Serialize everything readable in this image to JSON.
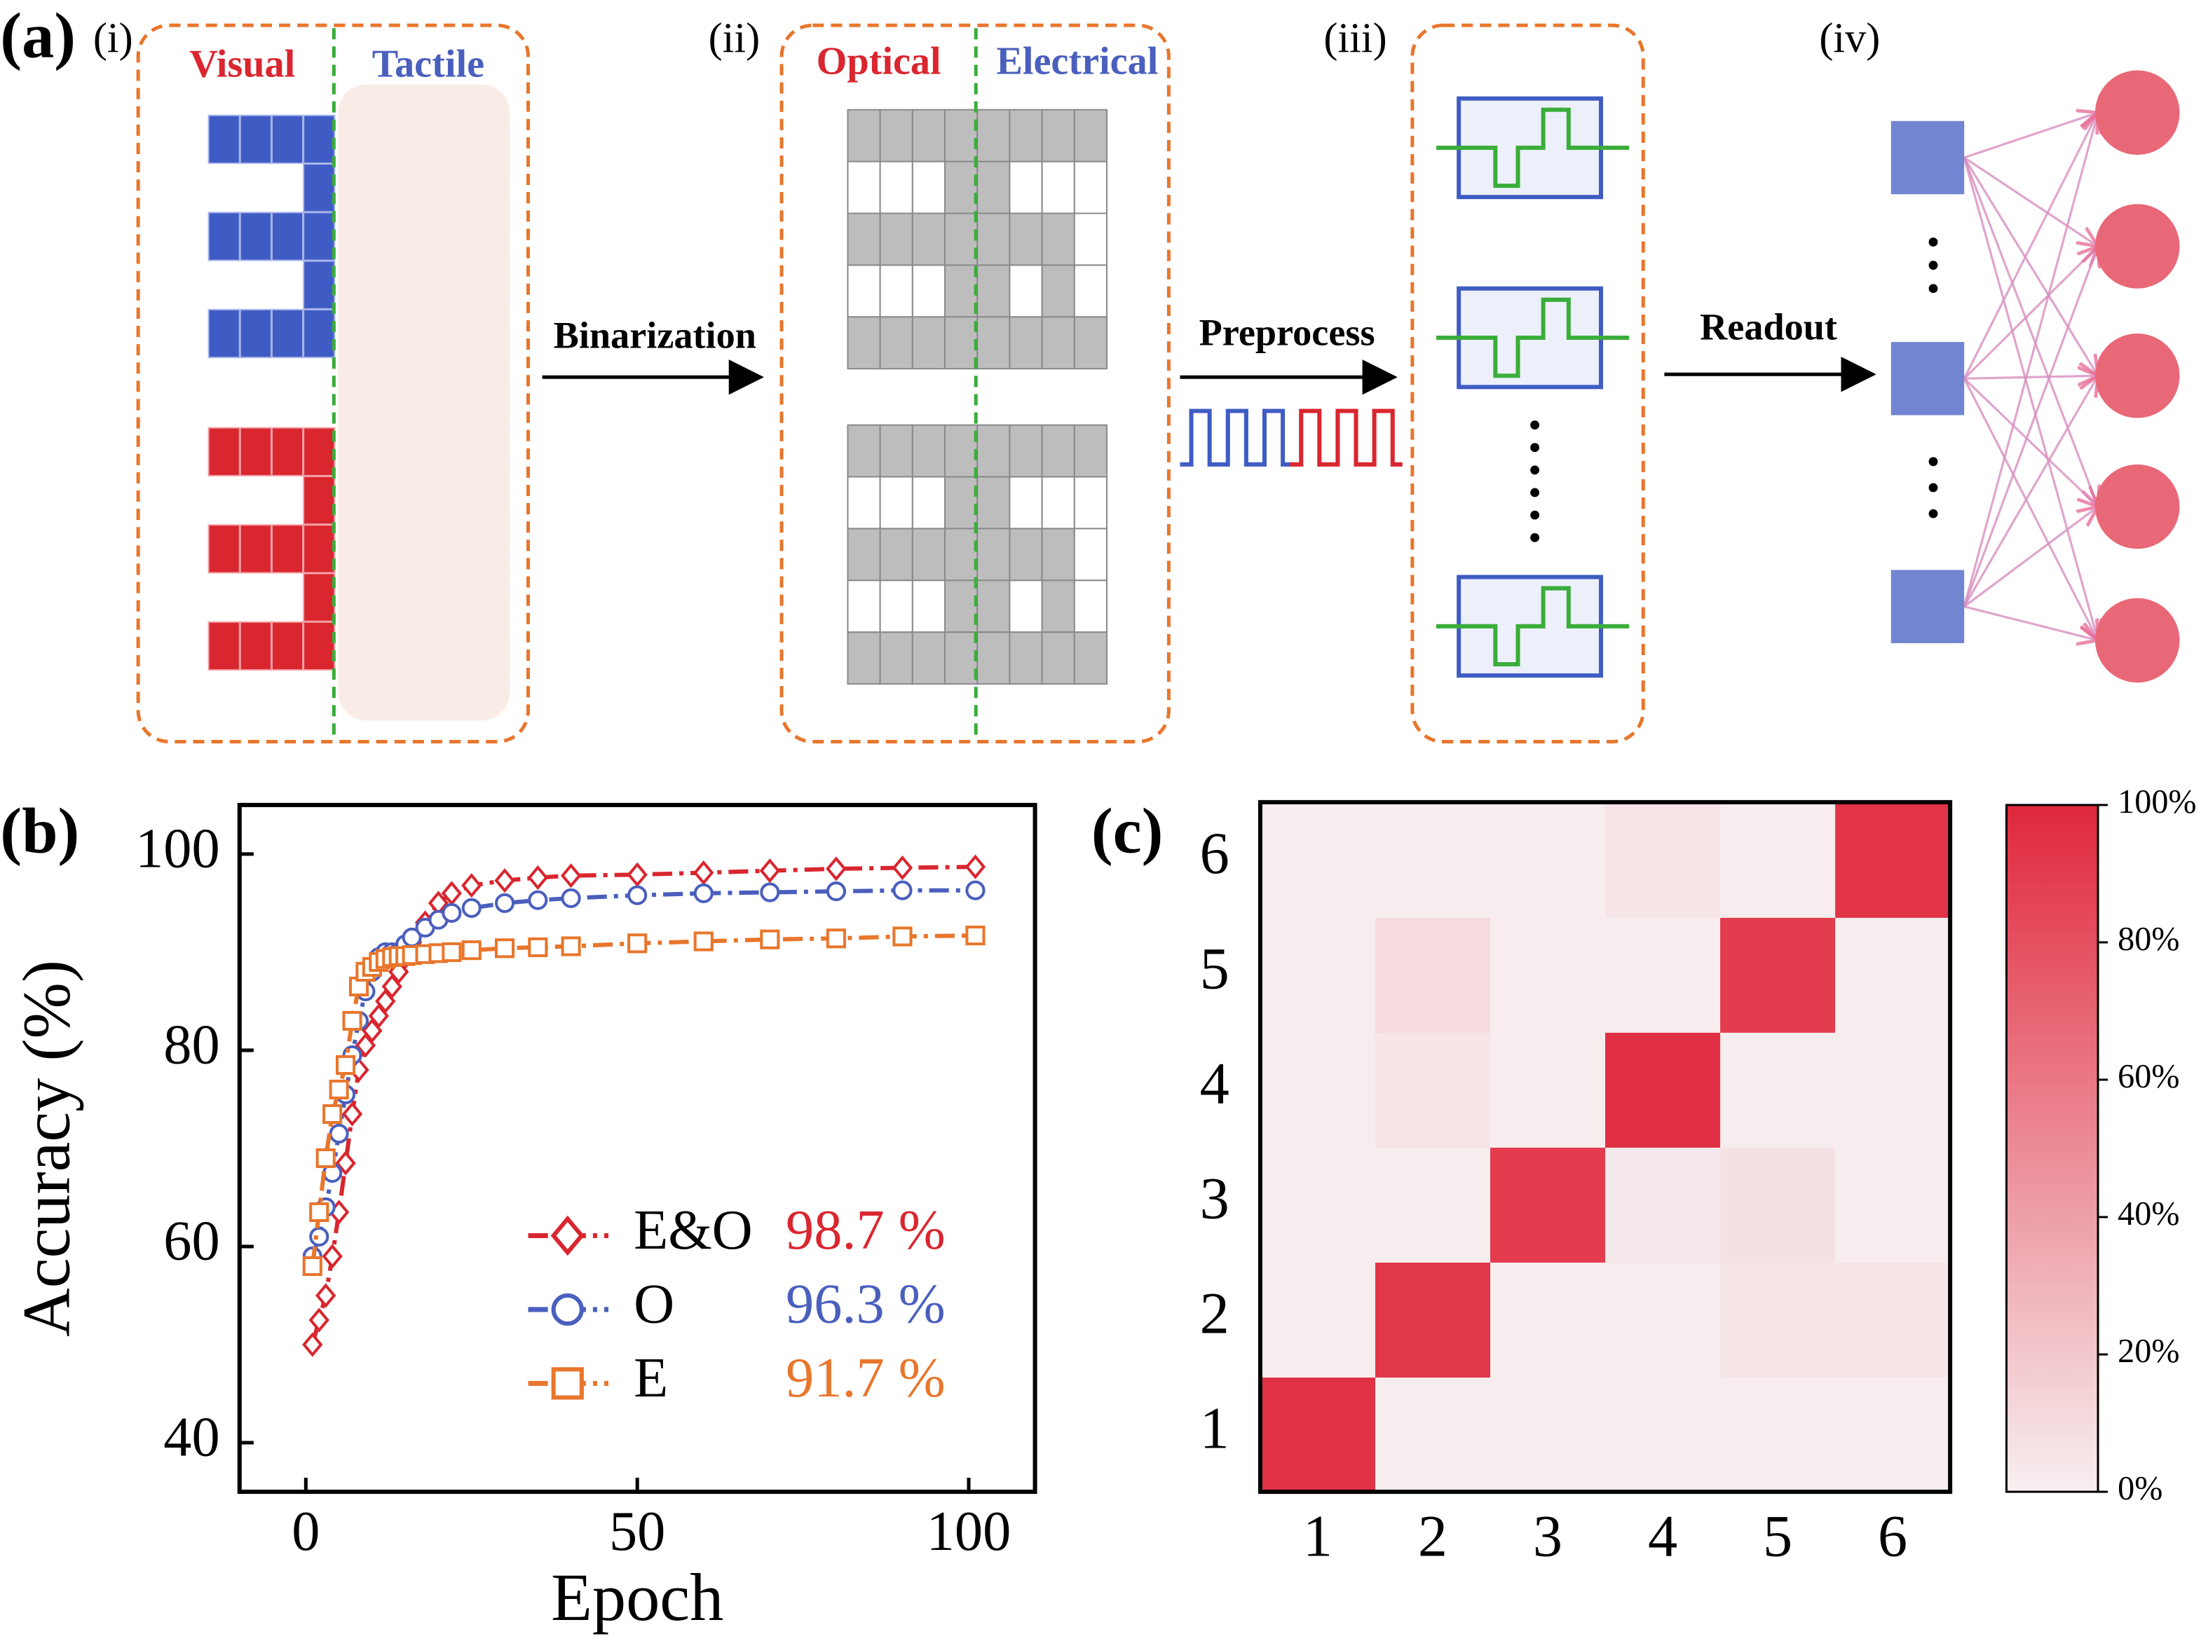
{
  "panel_a": {
    "label": "(a)",
    "steps": [
      {
        "label": "(i)",
        "left": "Visual",
        "right": "Tactile"
      },
      {
        "label": "(ii)",
        "left": "Optical",
        "right": "Electrical"
      },
      {
        "label": "(iii)"
      },
      {
        "label": "(iv)"
      }
    ],
    "arrows": [
      "Binarization",
      "Preprocess",
      "Readout"
    ]
  },
  "chart_data": [
    {
      "type": "line",
      "label": "(b)",
      "xlabel": "Epoch",
      "ylabel": "Accuracy (%)",
      "x": [
        1,
        2,
        3,
        4,
        5,
        6,
        7,
        8,
        9,
        10,
        11,
        12,
        13,
        14,
        15,
        16,
        18,
        20,
        22,
        25,
        30,
        35,
        40,
        50,
        60,
        70,
        80,
        90,
        101
      ],
      "xlim": [
        -10,
        110
      ],
      "xticks": [
        0,
        50,
        100
      ],
      "ylim": [
        35,
        105
      ],
      "yticks": [
        40,
        60,
        80,
        100
      ],
      "series": [
        {
          "name": "E&O",
          "color": "#d9262f",
          "marker": "diamond",
          "accuracy_label": "98.7 %",
          "values": [
            50,
            52.5,
            55,
            59,
            63.5,
            68.5,
            73.5,
            78,
            80.5,
            82,
            83.5,
            85,
            86.5,
            88,
            89.5,
            91,
            93,
            95,
            96,
            96.8,
            97.3,
            97.6,
            97.8,
            97.9,
            98.1,
            98.3,
            98.5,
            98.6,
            98.7
          ]
        },
        {
          "name": "O",
          "color": "#4a5fbd",
          "marker": "circle",
          "accuracy_label": "96.3 %",
          "values": [
            59,
            61,
            64,
            67.5,
            71.5,
            75.5,
            79.5,
            83,
            86,
            88,
            89.5,
            90,
            90,
            90,
            90.8,
            91.5,
            92.5,
            93.3,
            94,
            94.5,
            95,
            95.3,
            95.5,
            95.8,
            96,
            96.1,
            96.2,
            96.3,
            96.3
          ]
        },
        {
          "name": "E",
          "color": "#e8762c",
          "marker": "square",
          "accuracy_label": "91.7 %",
          "values": [
            58,
            63.5,
            69,
            73.5,
            76,
            78.5,
            83,
            86.5,
            88,
            88.5,
            89,
            89.3,
            89.5,
            89.6,
            89.6,
            89.7,
            89.8,
            89.9,
            90,
            90.2,
            90.4,
            90.5,
            90.6,
            90.9,
            91.1,
            91.3,
            91.4,
            91.6,
            91.7
          ]
        }
      ]
    },
    {
      "type": "heatmap",
      "label": "(c)",
      "categories": [
        1,
        2,
        3,
        4,
        5,
        6
      ],
      "y_categories": [
        1,
        2,
        3,
        4,
        5,
        6
      ],
      "values": [
        [
          95,
          1,
          1,
          1,
          1,
          1
        ],
        [
          1,
          93,
          1,
          1,
          5,
          5
        ],
        [
          1,
          1,
          90,
          3,
          7,
          1
        ],
        [
          1,
          5,
          1,
          96,
          1,
          1
        ],
        [
          1,
          10,
          1,
          1,
          90,
          1
        ],
        [
          1,
          1,
          1,
          5,
          1,
          94
        ]
      ],
      "colorbar": {
        "range": [
          0,
          100
        ],
        "colors": [
          "#f7eff0",
          "#e0283c"
        ],
        "ticks": [
          {
            "value": 0,
            "label": "0%"
          },
          {
            "value": 20,
            "label": "20%"
          },
          {
            "value": 40,
            "label": "40%"
          },
          {
            "value": 60,
            "label": "60%"
          },
          {
            "value": 80,
            "label": "80%"
          },
          {
            "value": 100,
            "label": "100%"
          }
        ]
      }
    }
  ]
}
